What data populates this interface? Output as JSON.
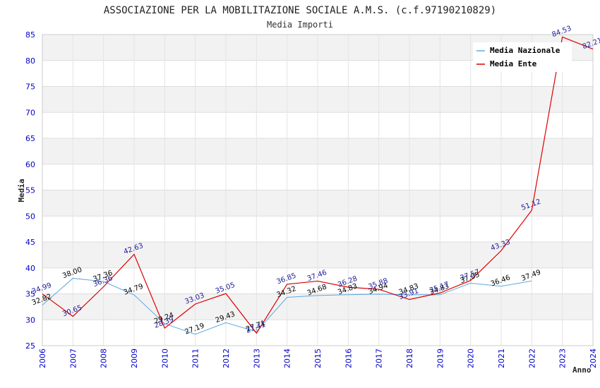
{
  "chart_data": {
    "type": "line",
    "title": "ASSOCIAZIONE PER LA MOBILITAZIONE SOCIALE A.M.S. (c.f.97190210829)",
    "subtitle": "Media Importi",
    "xlabel": "Anno",
    "ylabel": "Media",
    "ylim": [
      25,
      85
    ],
    "yticks": [
      25,
      30,
      35,
      40,
      45,
      50,
      55,
      60,
      65,
      70,
      75,
      80,
      85
    ],
    "x": [
      2006,
      2007,
      2008,
      2009,
      2010,
      2011,
      2012,
      2013,
      2014,
      2015,
      2016,
      2017,
      2018,
      2019,
      2020,
      2021,
      2022,
      2023,
      2024
    ],
    "x_tick_labels": [
      "2006",
      "2007",
      "2008",
      "2009",
      "2010",
      "2011",
      "2012",
      "2013",
      "2014",
      "2015",
      "2016",
      "2017",
      "2018",
      "2019",
      "2020",
      "2021",
      "2022",
      "2023",
      "2024"
    ],
    "grid": true,
    "legend_position": "top-right",
    "series": [
      {
        "name": "Media Nazionale",
        "color": "#5fa8df",
        "x": [
          2006,
          2007,
          2008,
          2009,
          2010,
          2011,
          2012,
          2013,
          2014,
          2015,
          2016,
          2017,
          2018,
          2019,
          2020,
          2021,
          2022
        ],
        "values": [
          32.82,
          38.0,
          37.36,
          34.79,
          29.24,
          27.19,
          29.43,
          27.71,
          34.32,
          34.68,
          34.83,
          34.94,
          34.83,
          34.83,
          37.05,
          36.46,
          37.49
        ],
        "labels": [
          "32.82",
          "38.00",
          "37.36",
          "34.79",
          "29.24",
          "27.19",
          "29.43",
          "27.71",
          "34.32",
          "34.68",
          "34.83",
          "34.94",
          "34.83",
          "34.83",
          "37.05",
          "36.46",
          "37.49"
        ]
      },
      {
        "name": "Media Ente",
        "color": "#dd0000",
        "x": [
          2006,
          2007,
          2008,
          2009,
          2010,
          2011,
          2012,
          2013,
          2014,
          2015,
          2016,
          2017,
          2018,
          2019,
          2020,
          2021,
          2022,
          2023,
          2024
        ],
        "values": [
          34.99,
          30.65,
          36.36,
          42.63,
          28.39,
          33.03,
          35.05,
          27.41,
          36.85,
          37.46,
          36.28,
          35.88,
          33.91,
          35.17,
          37.57,
          43.33,
          51.12,
          84.53,
          82.21
        ],
        "labels": [
          "34.99",
          "30.65",
          "36.36",
          "42.63",
          "28.39",
          "33.03",
          "35.05",
          "27.41",
          "36.85",
          "37.46",
          "36.28",
          "35.88",
          "33.91",
          "35.17",
          "37.57",
          "43.33",
          "51.12",
          "84.53",
          "82.21"
        ]
      }
    ]
  }
}
